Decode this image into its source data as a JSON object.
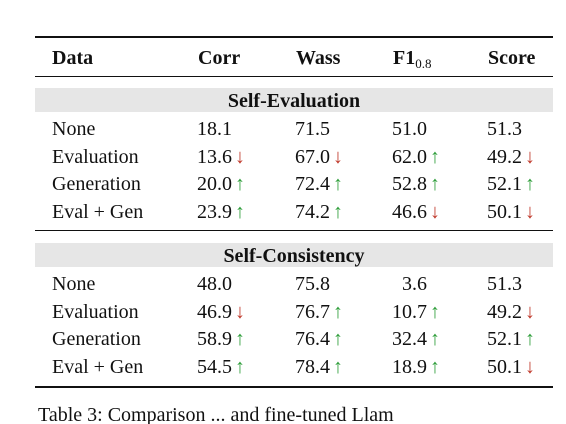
{
  "table": {
    "header": {
      "label": "Data",
      "columns": [
        {
          "text": "Corr"
        },
        {
          "text": "Wass"
        },
        {
          "text": "F1",
          "sub": "0.8"
        },
        {
          "text": "Score"
        }
      ]
    },
    "arrow_colors": {
      "↑": "#2e9e3a",
      "↓": "#c0392b"
    },
    "sections": [
      {
        "title": "Self-Evaluation",
        "rows": [
          {
            "label": "None",
            "cells": [
              {
                "value": "18.1"
              },
              {
                "value": "71.5"
              },
              {
                "value": "51.0"
              },
              {
                "value": "51.3"
              }
            ]
          },
          {
            "label": "Evaluation",
            "cells": [
              {
                "value": "13.6",
                "arrow": "↓"
              },
              {
                "value": "67.0",
                "arrow": "↓"
              },
              {
                "value": "62.0",
                "arrow": "↑"
              },
              {
                "value": "49.2",
                "arrow": "↓"
              }
            ]
          },
          {
            "label": "Generation",
            "cells": [
              {
                "value": "20.0",
                "arrow": "↑"
              },
              {
                "value": "72.4",
                "arrow": "↑"
              },
              {
                "value": "52.8",
                "arrow": "↑"
              },
              {
                "value": "52.1",
                "arrow": "↑"
              }
            ]
          },
          {
            "label": "Eval + Gen",
            "cells": [
              {
                "value": "23.9",
                "arrow": "↑"
              },
              {
                "value": "74.2",
                "arrow": "↑"
              },
              {
                "value": "46.6",
                "arrow": "↓"
              },
              {
                "value": "50.1",
                "arrow": "↓"
              }
            ]
          }
        ]
      },
      {
        "title": "Self-Consistency",
        "rows": [
          {
            "label": "None",
            "cells": [
              {
                "value": "48.0"
              },
              {
                "value": "75.8"
              },
              {
                "value": "3.6"
              },
              {
                "value": "51.3"
              }
            ]
          },
          {
            "label": "Evaluation",
            "cells": [
              {
                "value": "46.9",
                "arrow": "↓"
              },
              {
                "value": "76.7",
                "arrow": "↑"
              },
              {
                "value": "10.7",
                "arrow": "↑"
              },
              {
                "value": "49.2",
                "arrow": "↓"
              }
            ]
          },
          {
            "label": "Generation",
            "cells": [
              {
                "value": "58.9",
                "arrow": "↑"
              },
              {
                "value": "76.4",
                "arrow": "↑"
              },
              {
                "value": "32.4",
                "arrow": "↑"
              },
              {
                "value": "52.1",
                "arrow": "↑"
              }
            ]
          },
          {
            "label": "Eval + Gen",
            "cells": [
              {
                "value": "54.5",
                "arrow": "↑"
              },
              {
                "value": "78.4",
                "arrow": "↑"
              },
              {
                "value": "18.9",
                "arrow": "↑"
              },
              {
                "value": "50.1",
                "arrow": "↓"
              }
            ]
          }
        ]
      }
    ]
  },
  "caption": "Table 3: Comparison ... and fine-tuned Llam"
}
